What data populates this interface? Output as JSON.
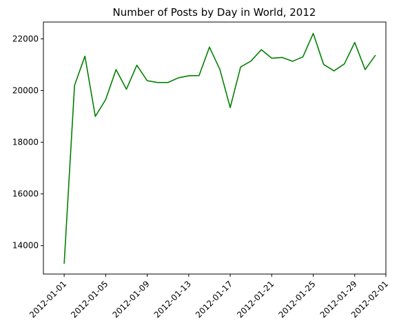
{
  "chart_data": {
    "type": "line",
    "title": "Number of Posts by Day in World, 2012",
    "xlabel": "",
    "ylabel": "",
    "x": [
      "2012-01-01",
      "2012-01-02",
      "2012-01-03",
      "2012-01-04",
      "2012-01-05",
      "2012-01-06",
      "2012-01-07",
      "2012-01-08",
      "2012-01-09",
      "2012-01-10",
      "2012-01-11",
      "2012-01-12",
      "2012-01-13",
      "2012-01-14",
      "2012-01-15",
      "2012-01-16",
      "2012-01-17",
      "2012-01-18",
      "2012-01-19",
      "2012-01-20",
      "2012-01-21",
      "2012-01-22",
      "2012-01-23",
      "2012-01-24",
      "2012-01-25",
      "2012-01-26",
      "2012-01-27",
      "2012-01-28",
      "2012-01-29",
      "2012-01-30",
      "2012-01-31"
    ],
    "series": [
      {
        "color": "#008000",
        "values": [
          13300,
          20200,
          21330,
          19000,
          19650,
          20810,
          20050,
          20980,
          20380,
          20310,
          20310,
          20490,
          20570,
          20580,
          21680,
          20820,
          19340,
          20910,
          21140,
          21580,
          21250,
          21280,
          21130,
          21300,
          22210,
          21010,
          20760,
          21030,
          21860,
          20810,
          21370
        ]
      }
    ],
    "xlim": [
      "2011-12-30",
      "2012-02-01"
    ],
    "ylim": [
      12900,
      22650
    ],
    "xticks": [
      "2012-01-01",
      "2012-01-05",
      "2012-01-09",
      "2012-01-13",
      "2012-01-17",
      "2012-01-21",
      "2012-01-25",
      "2012-01-29",
      "2012-02-01"
    ],
    "yticks": [
      14000,
      16000,
      18000,
      20000,
      22000
    ],
    "grid": false,
    "legend": "none"
  }
}
